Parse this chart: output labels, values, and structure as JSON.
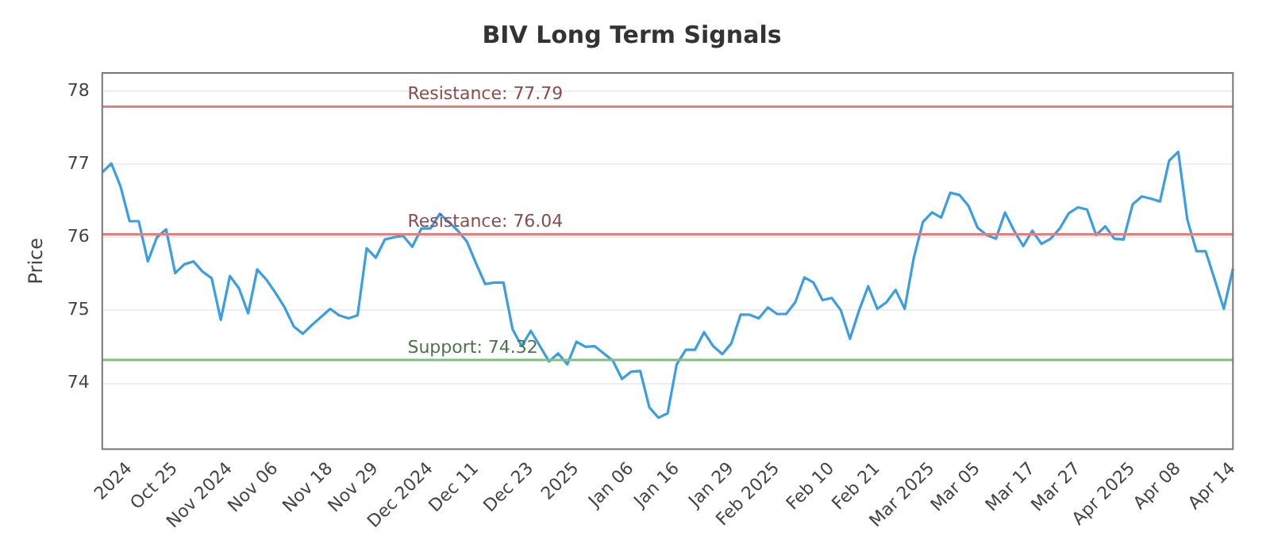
{
  "chart_data": {
    "type": "line",
    "title": "BIV Long Term Signals",
    "ylabel": "Price",
    "categories": [
      null,
      null,
      null,
      "2024",
      null,
      null,
      null,
      null,
      "Oct 25",
      null,
      null,
      null,
      null,
      null,
      "Nov 2024",
      null,
      null,
      null,
      null,
      "Nov 06",
      null,
      null,
      null,
      null,
      null,
      "Nov 18",
      null,
      null,
      null,
      null,
      "Nov 29",
      null,
      null,
      null,
      null,
      null,
      "Dec 2024",
      null,
      null,
      null,
      null,
      "Dec 11",
      null,
      null,
      null,
      null,
      null,
      "Dec 23",
      null,
      null,
      null,
      null,
      "2025",
      null,
      null,
      null,
      null,
      null,
      "Jan 06",
      null,
      null,
      null,
      null,
      "Jan 16",
      null,
      null,
      null,
      null,
      null,
      "Jan 29",
      null,
      null,
      null,
      null,
      "Feb 2025",
      null,
      null,
      null,
      null,
      null,
      "Feb 10",
      null,
      null,
      null,
      null,
      "Feb 21",
      null,
      null,
      null,
      null,
      null,
      "Mar 2025",
      null,
      null,
      null,
      null,
      "Mar 05",
      null,
      null,
      null,
      null,
      null,
      "Mar 17",
      null,
      null,
      null,
      null,
      "Mar 27",
      null,
      null,
      null,
      null,
      null,
      "Apr 2025",
      null,
      null,
      null,
      null,
      "Apr 08",
      null,
      null,
      null,
      null,
      null,
      "Apr 14"
    ],
    "series": [
      {
        "color": "#3a9ee6",
        "values": [
          76.89,
          77.01,
          76.7,
          76.22,
          76.22,
          75.67,
          76.0,
          76.11,
          75.51,
          75.63,
          75.67,
          75.53,
          75.44,
          74.87,
          75.47,
          75.3,
          74.96,
          75.56,
          75.42,
          75.24,
          75.04,
          74.78,
          74.68,
          74.8,
          74.91,
          75.02,
          74.93,
          74.89,
          74.93,
          75.85,
          75.72,
          75.97,
          76.0,
          76.02,
          75.87,
          76.12,
          76.12,
          76.32,
          76.21,
          76.09,
          75.94,
          75.64,
          75.36,
          75.38,
          75.38,
          74.74,
          74.51,
          74.72,
          74.51,
          74.3,
          74.41,
          74.26,
          74.57,
          74.5,
          74.51,
          74.41,
          74.31,
          74.06,
          74.16,
          74.17,
          73.67,
          73.53,
          73.59,
          74.26,
          74.46,
          74.46,
          74.7,
          74.51,
          74.4,
          74.55,
          74.94,
          74.94,
          74.89,
          75.04,
          74.95,
          74.95,
          75.11,
          75.45,
          75.38,
          75.14,
          75.17,
          75.0,
          74.61,
          75.0,
          75.33,
          75.02,
          75.11,
          75.28,
          75.02,
          75.72,
          76.21,
          76.34,
          76.27,
          76.61,
          76.58,
          76.43,
          76.13,
          76.03,
          75.98,
          76.34,
          76.09,
          75.88,
          76.09,
          75.91,
          75.98,
          76.12,
          76.33,
          76.41,
          76.38,
          76.03,
          76.15,
          75.98,
          75.97,
          76.45,
          76.56,
          76.53,
          76.49,
          77.05,
          77.17,
          76.24,
          75.81,
          75.81,
          75.42,
          75.02,
          75.57
        ]
      }
    ],
    "ylim": [
      73.1,
      78.25
    ],
    "yticks": [
      74,
      75,
      76,
      77,
      78
    ],
    "grid": "y",
    "legend": false,
    "marker": "none",
    "line_style": "solid",
    "ref_lines": [
      {
        "axis": "y",
        "value": 77.79,
        "label": "Resistance: 77.79",
        "color": "#e57f7f"
      },
      {
        "axis": "y",
        "value": 76.04,
        "label": "Resistance: 76.04",
        "color": "#e57f7f"
      },
      {
        "axis": "y",
        "value": 74.32,
        "label": "Support: 74.32",
        "color": "#7fbf7f"
      }
    ]
  }
}
